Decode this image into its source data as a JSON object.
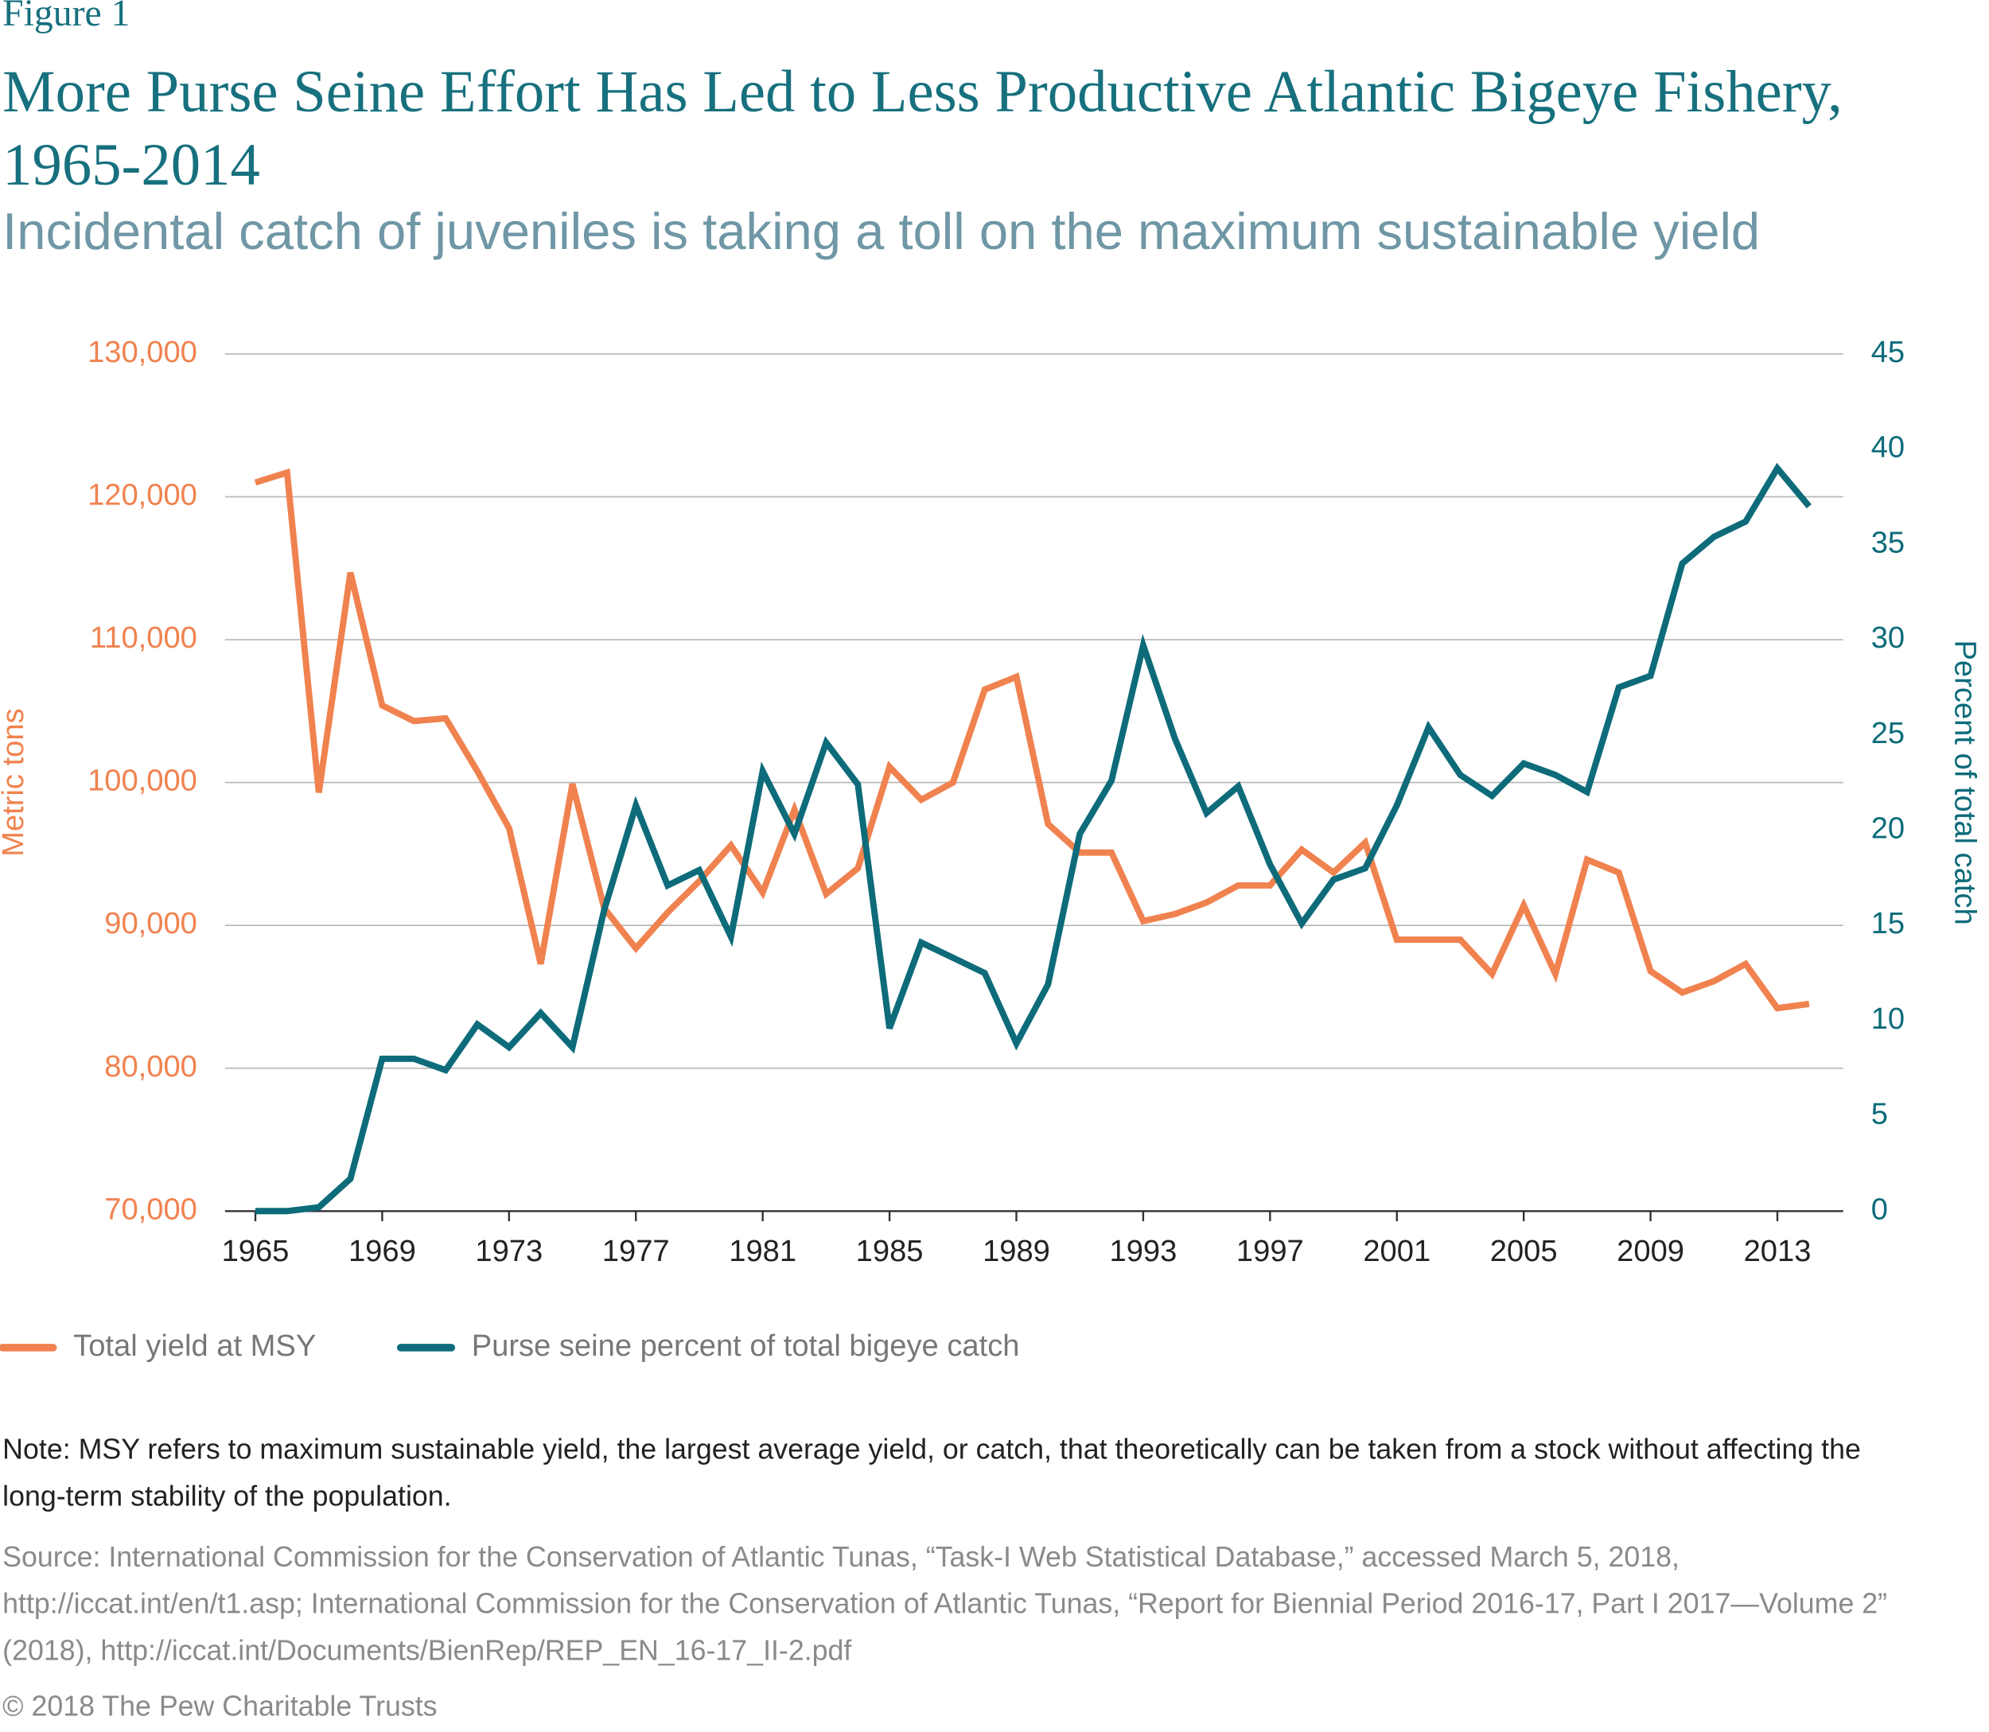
{
  "label": "Figure 1",
  "chart_data": {
    "type": "line",
    "title": "More Purse Seine Effort Has Led to Less Productive Atlantic Bigeye Fishery, 1965-2014",
    "subtitle": "Incidental catch of juveniles is taking a toll on the maximum sustainable yield",
    "y_label": "Metric tons",
    "y2_label": "Percent of total catch",
    "x": [
      1965,
      1966,
      1967,
      1968,
      1969,
      1970,
      1971,
      1972,
      1973,
      1974,
      1975,
      1976,
      1977,
      1978,
      1979,
      1980,
      1981,
      1982,
      1983,
      1984,
      1985,
      1986,
      1987,
      1988,
      1989,
      1990,
      1991,
      1992,
      1993,
      1994,
      1995,
      1996,
      1997,
      1998,
      1999,
      2000,
      2001,
      2002,
      2003,
      2004,
      2005,
      2006,
      2007,
      2008,
      2009,
      2010,
      2011,
      2012,
      2013,
      2014
    ],
    "xlim": [
      1965,
      2014
    ],
    "xticks": [
      1965,
      1969,
      1973,
      1977,
      1981,
      1985,
      1989,
      1993,
      1997,
      2001,
      2005,
      2009,
      2013
    ],
    "ylim": [
      70000,
      130000
    ],
    "yticks": [
      {
        "value": 70000,
        "label": "70,000"
      },
      {
        "value": 80000,
        "label": "80,000"
      },
      {
        "value": 90000,
        "label": "90,000"
      },
      {
        "value": 100000,
        "label": "100,000"
      },
      {
        "value": 110000,
        "label": "110,000"
      },
      {
        "value": 120000,
        "label": "120,000"
      },
      {
        "value": 130000,
        "label": "130,000"
      }
    ],
    "y2lim": [
      0,
      45
    ],
    "y2ticks": [
      0,
      5,
      10,
      15,
      20,
      25,
      30,
      35,
      40,
      45
    ],
    "grid": true,
    "series": [
      {
        "name": "Total yield at MSY",
        "color": "#f0824f",
        "values": [
          121000,
          121700,
          99300,
          114700,
          105400,
          104300,
          104500,
          100800,
          96800,
          87300,
          99900,
          91200,
          88400,
          90900,
          93100,
          95600,
          92300,
          98100,
          92200,
          94000,
          101100,
          98800,
          100000,
          106500,
          107400,
          97100,
          95100,
          95100,
          90300,
          90800,
          91600,
          92800,
          92800,
          95300,
          93700,
          95800,
          89000,
          89000,
          89000,
          86600,
          91400,
          86600,
          94600,
          93700,
          86800,
          85300,
          86100,
          87300,
          84200,
          84500
        ]
      },
      {
        "name": "Purse seine percent of total bigeye catch",
        "color": "#0d6b7a",
        "axis": "y2",
        "values": [
          0,
          0,
          0.2,
          1.7,
          8.0,
          8.0,
          7.4,
          9.8,
          8.6,
          10.4,
          8.6,
          15.8,
          21.3,
          17.1,
          17.9,
          14.4,
          23.1,
          19.8,
          24.6,
          22.4,
          9.6,
          14.1,
          13.3,
          12.5,
          8.8,
          11.9,
          19.8,
          22.6,
          29.7,
          24.8,
          20.9,
          22.3,
          18.2,
          15.1,
          17.4,
          18.0,
          21.3,
          25.4,
          22.9,
          21.8,
          23.5,
          22.9,
          22.0,
          27.5,
          28.1,
          34.0,
          35.4,
          36.2,
          39.0,
          37.0
        ]
      }
    ]
  },
  "note": "Note: MSY refers to maximum sustainable yield, the largest average yield, or catch, that theoretically can be taken from a stock without affecting the long-term stability of the population.",
  "source": "Source: International Commission for the Conservation of Atlantic Tunas, “Task-I Web Statistical Database,” accessed March 5, 2018, http://iccat.int/en/t1.asp; International Commission for the Conservation of Atlantic Tunas, “Report for Biennial Period 2016-17, Part I 2017—Volume 2” (2018), http://iccat.int/Documents/BienRep/REP_EN_16-17_II-2.pdf",
  "copyright": "© 2018 The Pew Charitable Trusts"
}
